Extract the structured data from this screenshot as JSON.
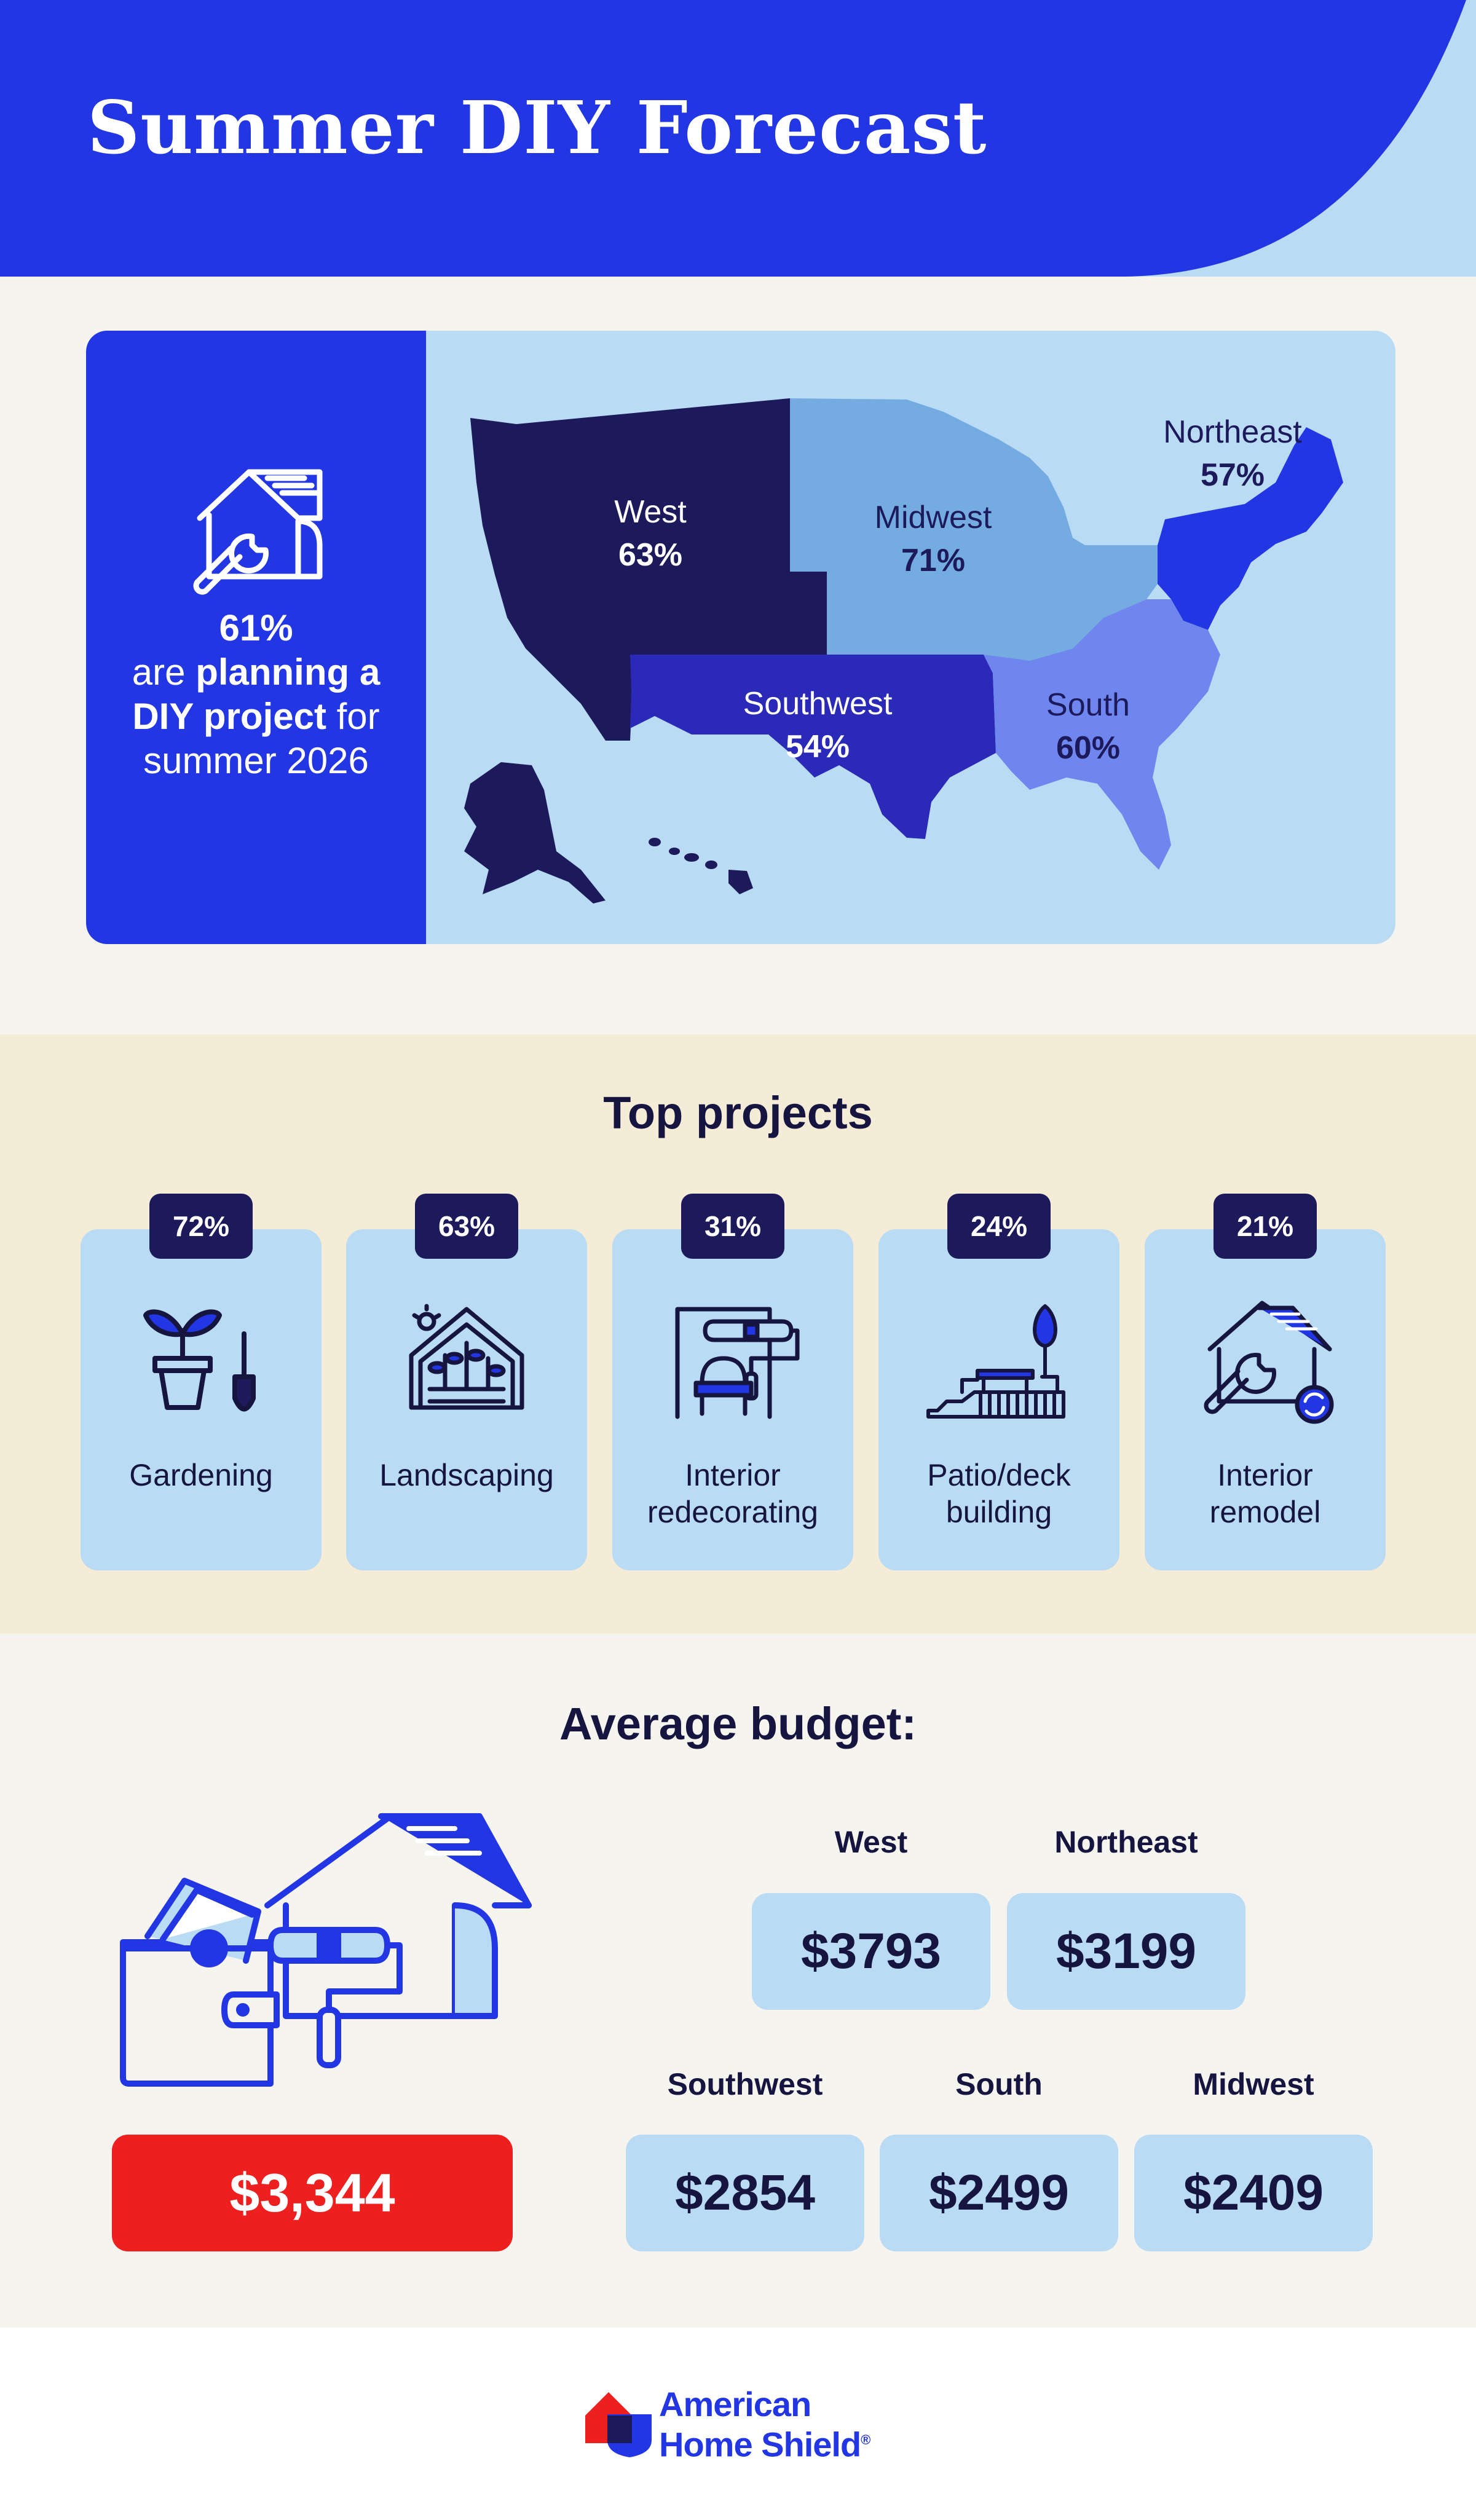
{
  "header": {
    "title": "Summer DIY Forecast",
    "colors": {
      "brand_blue": "#2236e4",
      "light_blue": "#b9dbf4"
    }
  },
  "summary": {
    "icon": "house-wrench-icon",
    "percent": "61%",
    "line1": "are",
    "line1_bold": "planning a",
    "line2_bold": "DIY project",
    "line2": "for",
    "line3": "summer 2026"
  },
  "map": {
    "regions": [
      {
        "name": "West",
        "percent": "63%",
        "color": "#1d1a5c"
      },
      {
        "name": "Midwest",
        "percent": "71%",
        "color": "#74ace2"
      },
      {
        "name": "Northeast",
        "percent": "57%",
        "color": "#2236e4"
      },
      {
        "name": "Southwest",
        "percent": "54%",
        "color": "#2a29b8"
      },
      {
        "name": "South",
        "percent": "60%",
        "color": "#6f86ee"
      }
    ]
  },
  "projects": {
    "title": "Top projects",
    "items": [
      {
        "percent": "72%",
        "label_line1": "Gardening",
        "label_line2": "",
        "icon": "seedling-pot-shovel-icon"
      },
      {
        "percent": "63%",
        "label_line1": "Landscaping",
        "label_line2": "",
        "icon": "greenhouse-plants-icon"
      },
      {
        "percent": "31%",
        "label_line1": "Interior",
        "label_line2": "redecorating",
        "icon": "paint-roller-chair-icon"
      },
      {
        "percent": "24%",
        "label_line1": "Patio/deck",
        "label_line2": "building",
        "icon": "deck-stairs-tree-icon"
      },
      {
        "percent": "21%",
        "label_line1": "Interior",
        "label_line2": "remodel",
        "icon": "house-wrench-refresh-icon"
      }
    ]
  },
  "budget": {
    "title": "Average budget:",
    "overall": "$3,344",
    "overall_color": "#ee1f1f",
    "illustration": "wallet-house-roller-icon",
    "regions": [
      {
        "name": "West",
        "value": "$3793"
      },
      {
        "name": "Northeast",
        "value": "$3199"
      },
      {
        "name": "Southwest",
        "value": "$2854"
      },
      {
        "name": "South",
        "value": "$2499"
      },
      {
        "name": "Midwest",
        "value": "$2409"
      }
    ]
  },
  "footer": {
    "logo_line1": "American",
    "logo_line2": "Home Shield",
    "logo_mark": "®",
    "icon": "american-home-shield-logo-icon"
  }
}
